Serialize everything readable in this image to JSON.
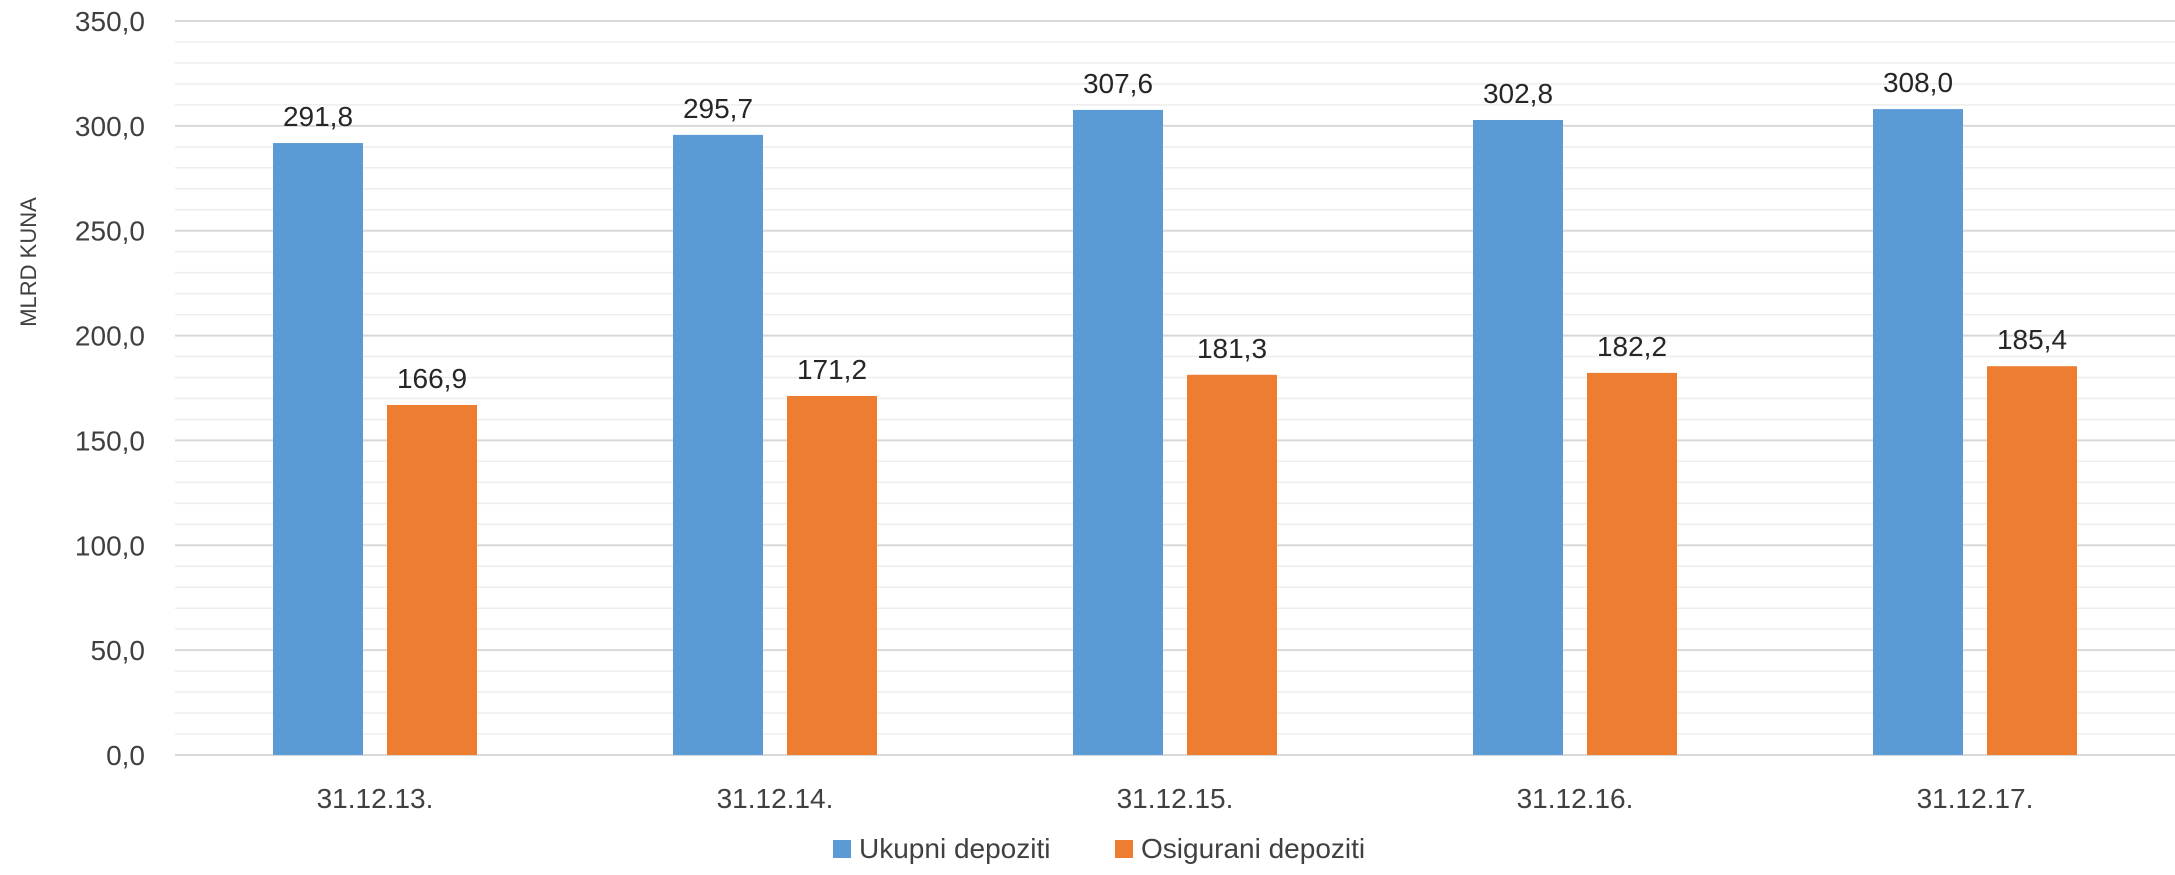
{
  "chart_data": {
    "type": "bar",
    "title": "",
    "xlabel": "",
    "ylabel": "MLRD KUNA",
    "ylim": [
      0,
      350
    ],
    "y_tick_step": 50,
    "y_tick_labels": [
      "0,0",
      "50,0",
      "100,0",
      "150,0",
      "200,0",
      "250,0",
      "300,0",
      "350,0"
    ],
    "grid": true,
    "legend_position": "bottom",
    "categories": [
      "31.12.13.",
      "31.12.14.",
      "31.12.15.",
      "31.12.16.",
      "31.12.17."
    ],
    "series": [
      {
        "name": "Ukupni depoziti",
        "color": "#5B9BD5",
        "values": [
          291.8,
          295.7,
          307.6,
          302.8,
          308.0
        ],
        "labels": [
          "291,8",
          "295,7",
          "307,6",
          "302,8",
          "308,0"
        ]
      },
      {
        "name": "Osigurani depoziti",
        "color": "#ED7D31",
        "values": [
          166.9,
          171.2,
          181.3,
          182.2,
          185.4
        ],
        "labels": [
          "166,9",
          "171,2",
          "181,3",
          "182,2",
          "185,4"
        ]
      }
    ]
  }
}
